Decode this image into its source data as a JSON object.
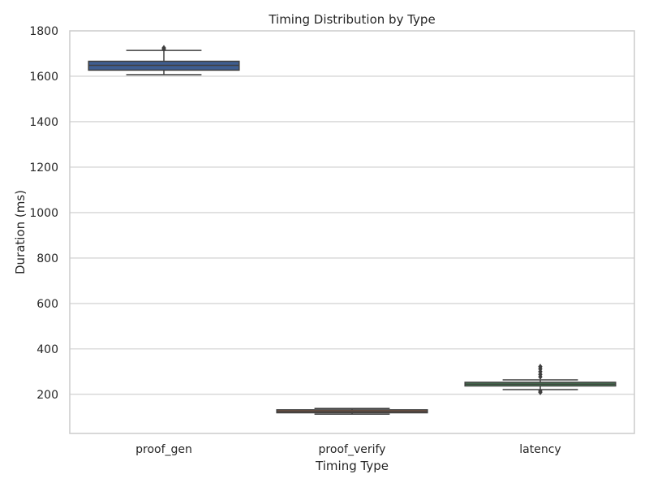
{
  "chart_data": {
    "type": "box",
    "title": "Timing Distribution by Type",
    "xlabel": "Timing Type",
    "ylabel": "Duration (ms)",
    "ylim": [
      28,
      1800
    ],
    "yticks": [
      200,
      400,
      600,
      800,
      1000,
      1200,
      1400,
      1600,
      1800
    ],
    "grid": true,
    "categories": [
      "proof_gen",
      "proof_verify",
      "latency"
    ],
    "boxes": [
      {
        "category": "proof_gen",
        "whisker_low": 1607,
        "q1": 1627,
        "median": 1648,
        "q3": 1666,
        "whisker_high": 1714,
        "outliers": [
          1720,
          1725
        ],
        "color": "#4c72b0"
      },
      {
        "category": "proof_verify",
        "whisker_low": 113,
        "q1": 119,
        "median": 125,
        "q3": 132,
        "whisker_high": 138,
        "outliers": [],
        "color": "#dd8452"
      },
      {
        "category": "latency",
        "whisker_low": 221,
        "q1": 237,
        "median": 245,
        "q3": 253,
        "whisker_high": 264,
        "outliers": [
          209,
          214,
          277,
          288,
          300,
          312,
          322
        ],
        "color": "#55a868"
      }
    ]
  }
}
